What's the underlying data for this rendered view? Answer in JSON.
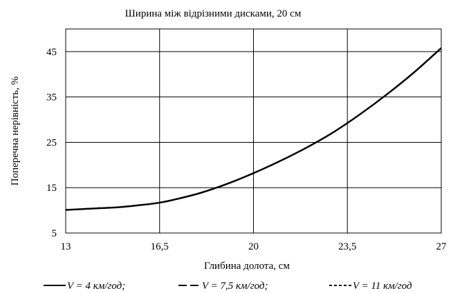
{
  "chart_data": {
    "type": "line",
    "title": "Ширина між відрізними дисками, 20 см",
    "xlabel": "Глибина долота, см",
    "ylabel": "Поперечна нерівність, %",
    "x_ticks": [
      "13",
      "16,5",
      "20",
      "23,5",
      "27"
    ],
    "y_ticks": [
      "5",
      "15",
      "25",
      "35",
      "45"
    ],
    "xlim": [
      13,
      27
    ],
    "ylim": [
      5,
      50
    ],
    "grid": true,
    "legend_position": "bottom",
    "series": [
      {
        "name": "V = 4 км/год;",
        "line_style": "solid",
        "x": [
          13,
          14,
          15,
          16,
          16.5,
          17,
          18,
          19,
          20,
          21,
          22,
          23,
          24,
          25,
          26,
          27
        ],
        "y": [
          10.1,
          10.4,
          10.7,
          11.3,
          11.7,
          12.3,
          13.8,
          15.8,
          18.2,
          20.9,
          23.9,
          27.3,
          31.3,
          35.7,
          40.5,
          45.8
        ]
      },
      {
        "name": "V = 7,5 км/год;",
        "line_style": "dash",
        "x": [],
        "y": []
      },
      {
        "name": "V = 11 км/год",
        "line_style": "short-dash",
        "x": [],
        "y": []
      }
    ]
  }
}
